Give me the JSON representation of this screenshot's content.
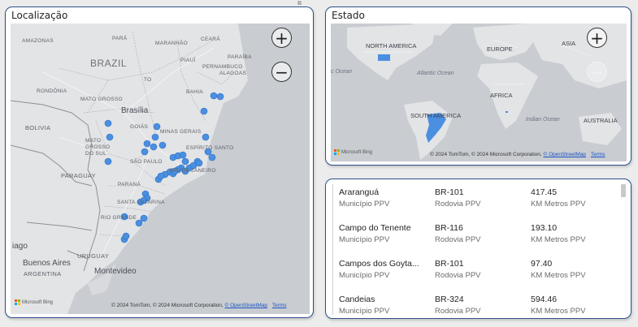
{
  "cards": {
    "localizacao": {
      "title": "Localização",
      "zoom_in": "+",
      "zoom_out": "−",
      "attribution": "© 2024 TomTom, © 2024 Microsoft Corporation,",
      "attribution_link": "© OpenStreetMap",
      "terms": "Terms",
      "logo": "Microsoft Bing",
      "labels": {
        "amazonas": "AMAZONAS",
        "para": "PARÁ",
        "maranhao": "MARANHÃO",
        "ceara": "CEARÁ",
        "paraiba": "PARAÍBA",
        "piaui": "PIAUÍ",
        "brazil": "BRAZIL",
        "pernambuco": "PERNAMBUCO",
        "alagoas": "ALAGOAS",
        "tocantins": "TO",
        "rondonia": "RONDÔNIA",
        "bahia": "BAHIA",
        "mato_grosso": "MATO GROSSO",
        "brasilia": "Brasília",
        "bolivia": "BOLIVIA",
        "goias": "GOIÁS",
        "minas": "MINAS GERAIS",
        "ms": "MATO\nGROSSO\nDO SUL",
        "espirito": "ESPÍRITO SANTO",
        "sao_paulo": "SÃO PAULO",
        "rio": "RIO DE JANEIRO",
        "paraguay": "PARAGUAY",
        "parana": "PARANÁ",
        "santa_catarina": "SANTA CATARINA",
        "rio_grande": "RIO GRANDE",
        "chile_tail": "iago",
        "uruguay": "URUGUAY",
        "buenos_aires": "Buenos Aires",
        "argentina": "ARGENTINA",
        "montevideo": "Montevideo"
      }
    },
    "estado": {
      "title": "Estado",
      "zoom_in": "+",
      "zoom_out": "−",
      "attribution": "© 2024 TomTom, © 2024 Microsoft Corporation,",
      "attribution_link": "© OpenStreetMap",
      "terms": "Terms",
      "logo": "Microsoft Bing",
      "labels": {
        "north_america": "NORTH AMERICA",
        "europe": "EUROPE",
        "asia": "ASIA",
        "atlantic": "Atlantic Ocean",
        "ocean_left": "c Ocean",
        "africa": "AFRICA",
        "south_america": "SOUTH AMERICA",
        "indian": "Indian Ocean",
        "australia": "AUSTRALIA"
      }
    },
    "table": {
      "rows": [
        {
          "municipio": "Araranguá",
          "municipio_label": "Município PPV",
          "rodovia": "BR-101",
          "rodovia_label": "Rodovia PPV",
          "km": "417.45",
          "km_label": "KM Metros PPV"
        },
        {
          "municipio": "Campo do Tenente",
          "municipio_label": "Município PPV",
          "rodovia": "BR-116",
          "rodovia_label": "Rodovia PPV",
          "km": "193.10",
          "km_label": "KM Metros PPV"
        },
        {
          "municipio": "Campos dos Goyta...",
          "municipio_label": "Município PPV",
          "rodovia": "BR-101",
          "rodovia_label": "Rodovia PPV",
          "km": "97.40",
          "km_label": "KM Metros PPV"
        },
        {
          "municipio": "Candeias",
          "municipio_label": "Município PPV",
          "rodovia": "BR-324",
          "rodovia_label": "Rodovia PPV",
          "km": "594.46",
          "km_label": "KM Metros PPV"
        }
      ]
    }
  },
  "colors": {
    "point": "#4a8fe0",
    "border": "#2e4f8c",
    "land": "#e3e4e6",
    "water": "#c9ccd1"
  }
}
